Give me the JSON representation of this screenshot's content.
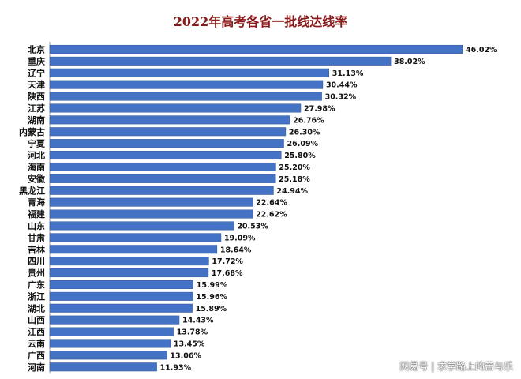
{
  "chart_data": {
    "type": "bar",
    "orientation": "horizontal",
    "title": "2022年高考各省一批线达线率",
    "xlabel": "",
    "ylabel": "",
    "xlim": [
      0,
      46.02
    ],
    "grid": false,
    "legend": "none",
    "bar_color": "#4472c4",
    "categories": [
      "北京",
      "重庆",
      "辽宁",
      "天津",
      "陕西",
      "江苏",
      "湖南",
      "内蒙古",
      "宁夏",
      "河北",
      "海南",
      "安徽",
      "黑龙江",
      "青海",
      "福建",
      "山东",
      "甘肃",
      "吉林",
      "四川",
      "贵州",
      "广东",
      "浙江",
      "湖北",
      "山西",
      "江西",
      "云南",
      "广西",
      "河南"
    ],
    "values": [
      46.02,
      38.02,
      31.13,
      30.44,
      30.32,
      27.98,
      26.76,
      26.3,
      26.09,
      25.8,
      25.2,
      25.18,
      24.94,
      22.64,
      22.62,
      20.53,
      19.09,
      18.64,
      17.72,
      17.68,
      15.99,
      15.96,
      15.89,
      14.43,
      13.78,
      13.45,
      13.06,
      11.93
    ],
    "value_labels": [
      "46.02%",
      "38.02%",
      "31.13%",
      "30.44%",
      "30.32%",
      "27.98%",
      "26.76%",
      "26.30%",
      "26.09%",
      "25.80%",
      "25.20%",
      "25.18%",
      "24.94%",
      "22.64%",
      "22.62%",
      "20.53%",
      "19.09%",
      "18.64%",
      "17.72%",
      "17.68%",
      "15.99%",
      "15.96%",
      "15.89%",
      "14.43%",
      "13.78%",
      "13.45%",
      "13.06%",
      "11.93%"
    ]
  },
  "watermark": "网易号 | 求学路上的苦与乐"
}
